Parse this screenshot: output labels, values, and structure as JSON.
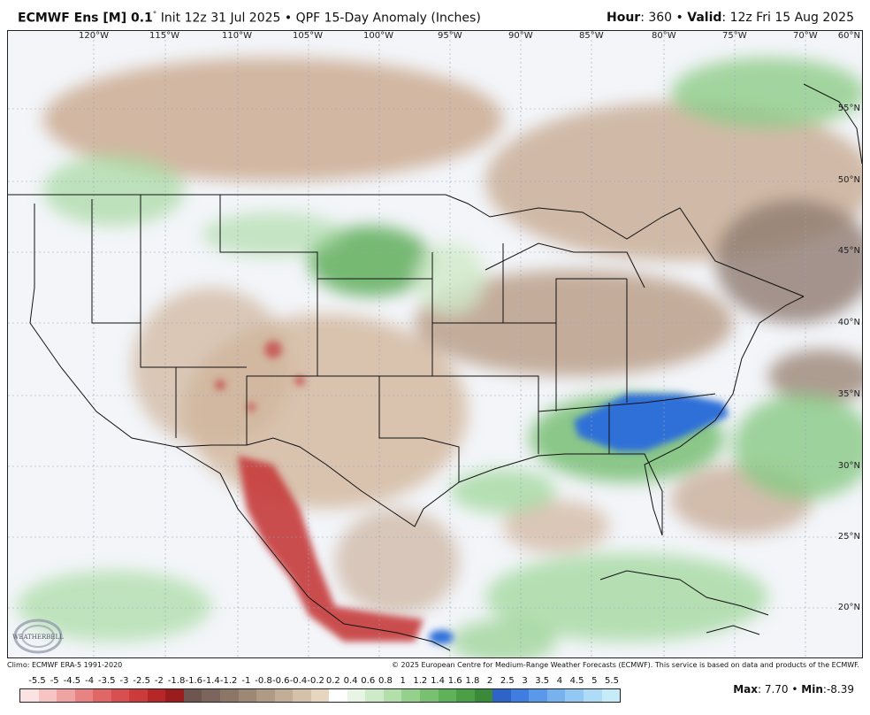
{
  "header": {
    "model": "ECMWF Ens [M] 0.1",
    "degree": "°",
    "init": "Init 12z 31 Jul 2025",
    "bullet": "•",
    "product": "QPF 15-Day Anomaly (Inches)",
    "hour_label": "Hour",
    "hour_value": ": 360",
    "valid_label": "Valid",
    "valid_value": ": 12z Fri 15 Aug 2025"
  },
  "map": {
    "longitudes": [
      "120°W",
      "115°W",
      "110°W",
      "105°W",
      "100°W",
      "95°W",
      "90°W",
      "85°W",
      "80°W",
      "75°W",
      "70°W"
    ],
    "latitudes": [
      "60°N",
      "55°N",
      "50°N",
      "45°N",
      "40°N",
      "35°N",
      "30°N",
      "25°N",
      "20°N"
    ],
    "logo_text": "WEATHERBELL"
  },
  "credits": {
    "climo": "Climo: ECMWF ERA-5 1991-2020",
    "copyright": "© 2025 European Centre for Medium-Range Weather Forecasts (ECMWF). This service is based on data and products of the ECMWF."
  },
  "colorbar": {
    "labels": [
      "-5.5",
      "-5",
      "-4.5",
      "-4",
      "-3.5",
      "-3",
      "-2.5",
      "-2",
      "-1.8",
      "-1.6",
      "-1.4",
      "-1.2",
      "-1",
      "-0.8",
      "-0.6",
      "-0.4",
      "-0.2",
      "0.2",
      "0.4",
      "0.6",
      "0.8",
      "1",
      "1.2",
      "1.4",
      "1.6",
      "1.8",
      "2",
      "2.5",
      "3",
      "3.5",
      "4",
      "4.5",
      "5",
      "5.5"
    ],
    "colors": [
      "#fbe3e3",
      "#f7c4c4",
      "#f0a3a3",
      "#e98383",
      "#e16767",
      "#d84f4f",
      "#cc3a3a",
      "#b72727",
      "#9a1c1c",
      "#6e5550",
      "#7c655c",
      "#8c7668",
      "#9d8876",
      "#af9a86",
      "#c2ad97",
      "#d4c1a9",
      "#e6d6c0",
      "#ffffff",
      "#e8f4e4",
      "#cfeac8",
      "#b3dfab",
      "#96d08d",
      "#79c171",
      "#5fb15a",
      "#4a9f47",
      "#3a8a3a",
      "#2e63c8",
      "#3f7ee0",
      "#5a98ea",
      "#78b1f0",
      "#93c7f4",
      "#aedcf7",
      "#c6ecfa"
    ]
  },
  "stats": {
    "max_label": "Max",
    "max_value": ": 7.70",
    "bullet": "•",
    "min_label": "Min",
    "min_value": ":-8.39"
  }
}
